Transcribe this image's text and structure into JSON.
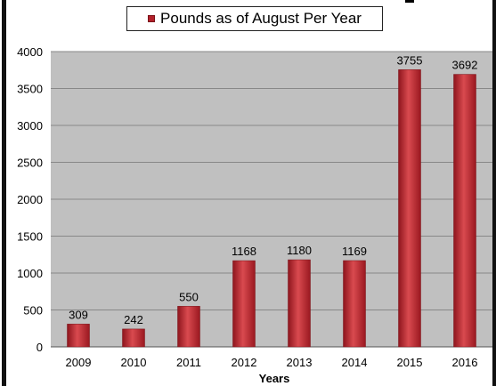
{
  "chart_data": {
    "type": "bar",
    "categories": [
      "2009",
      "2010",
      "2011",
      "2012",
      "2013",
      "2014",
      "2015",
      "2016"
    ],
    "series": [
      {
        "name": "Pounds as of August Per Year",
        "values": [
          309,
          242,
          550,
          1168,
          1180,
          1169,
          3755,
          3692
        ]
      }
    ],
    "data_labels": [
      "309",
      "242",
      "550",
      "1168",
      "1180",
      "1169",
      "3755",
      "3692"
    ],
    "xlabel": "Years",
    "ylabel": "",
    "ylim": [
      0,
      4000
    ],
    "yticks": [
      "0",
      "500",
      "1000",
      "1500",
      "2000",
      "2500",
      "3000",
      "3500",
      "4000"
    ],
    "grid": true,
    "legend_position": "top",
    "colors": {
      "bar": "#b3202a",
      "plot_bg": "#c0c0c0",
      "grid": "#888888"
    }
  }
}
